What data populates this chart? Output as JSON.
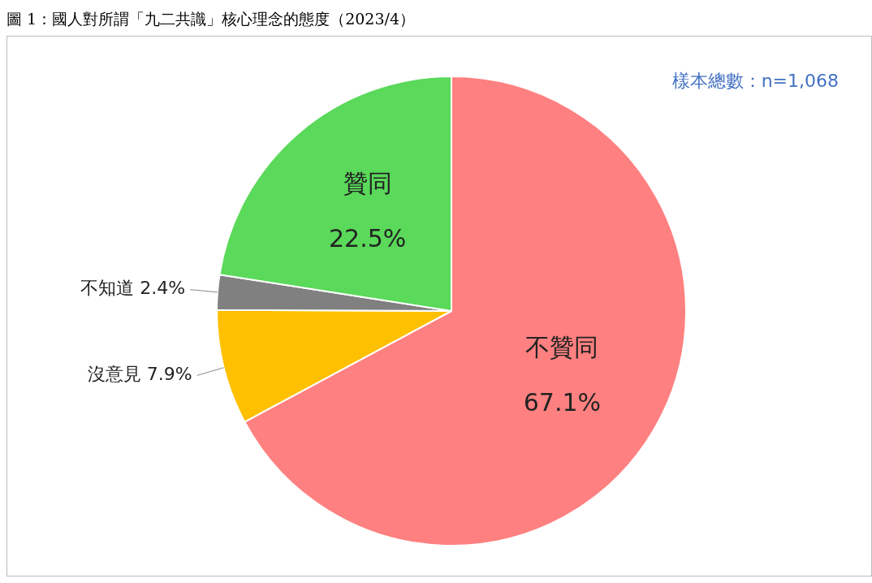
{
  "chart_data": {
    "type": "pie",
    "title": "圖 1：國人對所謂「九二共識」核心理念的態度（2023/4）",
    "categories": [
      "不贊同",
      "沒意見",
      "不知道",
      "贊同"
    ],
    "values": [
      67.1,
      7.9,
      2.4,
      22.5
    ],
    "value_labels": [
      "67.1%",
      "7.9%",
      "2.4%",
      "22.5%"
    ],
    "colors": [
      "#ff8080",
      "#ffc000",
      "#808080",
      "#5ad95a"
    ],
    "annotations": [
      "樣本總數：n=1,068"
    ],
    "legend": false
  }
}
